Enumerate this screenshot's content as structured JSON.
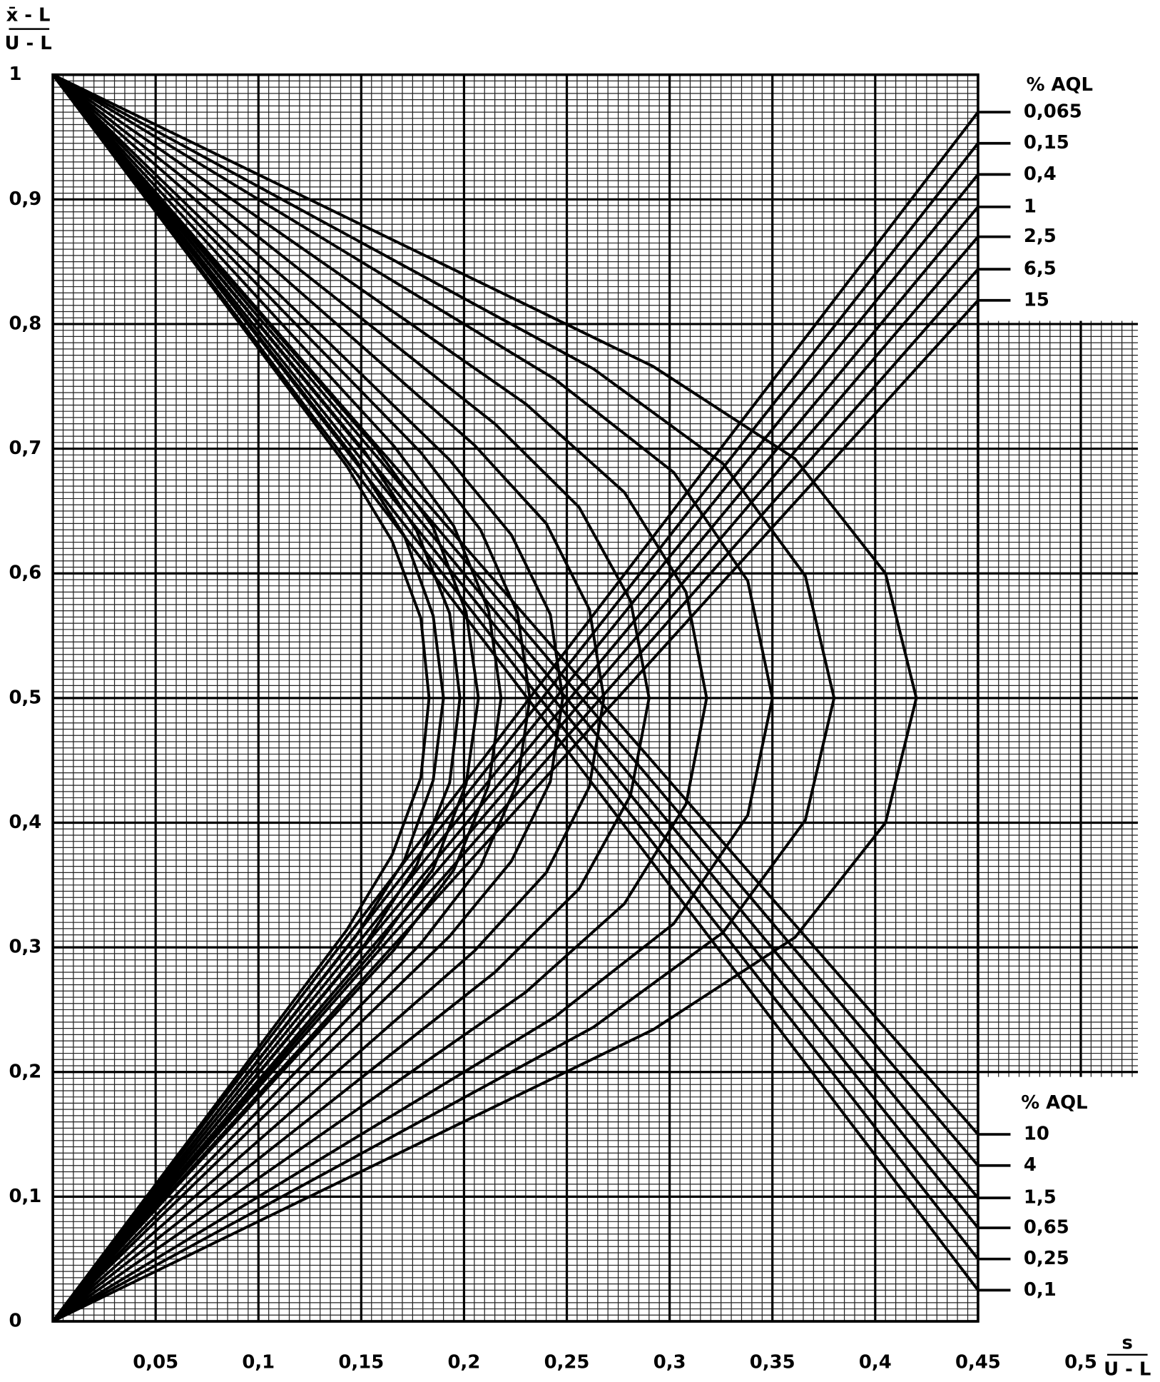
{
  "chart_data": {
    "type": "line",
    "y_label": {
      "numerator": "x̄ - L",
      "denominator": "U - L"
    },
    "x_label": {
      "numerator": "s",
      "denominator": "U - L"
    },
    "legend_title": "% AQL",
    "xlim": [
      0,
      0.45
    ],
    "ylim": [
      0,
      1
    ],
    "xticks": [
      {
        "value": 0.05,
        "label": "0,05"
      },
      {
        "value": 0.1,
        "label": "0,1"
      },
      {
        "value": 0.15,
        "label": "0,15"
      },
      {
        "value": 0.2,
        "label": "0,2"
      },
      {
        "value": 0.25,
        "label": "0,25"
      },
      {
        "value": 0.3,
        "label": "0,3"
      },
      {
        "value": 0.35,
        "label": "0,35"
      },
      {
        "value": 0.4,
        "label": "0,4"
      },
      {
        "value": 0.45,
        "label": "0,45"
      },
      {
        "value": 0.5,
        "label": "0,5"
      }
    ],
    "yticks": [
      0,
      {
        "value": 0.1,
        "label": "0,1"
      },
      {
        "value": 0.2,
        "label": "0,2"
      },
      {
        "value": 0.3,
        "label": "0,3"
      },
      {
        "value": 0.4,
        "label": "0,4"
      },
      {
        "value": 0.5,
        "label": "0,5"
      },
      {
        "value": 0.6,
        "label": "0,6"
      },
      {
        "value": 0.7,
        "label": "0,7"
      },
      {
        "value": 0.8,
        "label": "0,8"
      },
      {
        "value": 0.9,
        "label": "0,9"
      },
      1
    ],
    "x_minor_step": 0.005,
    "y_minor_step": 0.005,
    "grid": true,
    "series": [
      {
        "name": "0,065",
        "color": "#000000",
        "x": [
          0,
          0.143,
          0.165,
          0.179,
          0.183,
          0.179,
          0.165,
          0.143,
          0
        ],
        "values": [
          0,
          0.314,
          0.374,
          0.436,
          0.5,
          0.564,
          0.626,
          0.686,
          1
        ],
        "line_x": [
          0,
          0.45
        ],
        "line_y": [
          0,
          0.97
        ]
      },
      {
        "name": "0,1",
        "color": "#000000",
        "x": [
          0,
          0.147,
          0.171,
          0.185,
          0.19,
          0.185,
          0.171,
          0.147,
          0
        ],
        "values": [
          0,
          0.308,
          0.37,
          0.434,
          0.5,
          0.566,
          0.63,
          0.692,
          1
        ],
        "line_x": [
          0,
          0.45
        ],
        "line_y": [
          1,
          0.025
        ]
      },
      {
        "name": "0,15",
        "color": "#000000",
        "x": [
          0,
          0.152,
          0.177,
          0.193,
          0.198,
          0.193,
          0.177,
          0.152,
          0
        ],
        "values": [
          0,
          0.303,
          0.366,
          0.432,
          0.5,
          0.568,
          0.634,
          0.697,
          1
        ],
        "line_x": [
          0,
          0.45
        ],
        "line_y": [
          0,
          0.945
        ]
      },
      {
        "name": "0,25",
        "color": "#000000",
        "x": [
          0,
          0.157,
          0.185,
          0.201,
          0.207,
          0.201,
          0.185,
          0.157,
          0
        ],
        "values": [
          0,
          0.299,
          0.363,
          0.431,
          0.5,
          0.569,
          0.637,
          0.701,
          1
        ],
        "line_x": [
          0,
          0.45
        ],
        "line_y": [
          1,
          0.05
        ]
      },
      {
        "name": "0,4",
        "color": "#000000",
        "x": [
          0,
          0.166,
          0.195,
          0.212,
          0.218,
          0.212,
          0.195,
          0.166,
          0
        ],
        "values": [
          0,
          0.298,
          0.362,
          0.43,
          0.5,
          0.57,
          0.638,
          0.702,
          1
        ],
        "line_x": [
          0,
          0.45
        ],
        "line_y": [
          0,
          0.92
        ]
      },
      {
        "name": "0,65",
        "color": "#000000",
        "x": [
          0,
          0.179,
          0.208,
          0.226,
          0.232,
          0.226,
          0.208,
          0.179,
          0
        ],
        "values": [
          0,
          0.303,
          0.365,
          0.432,
          0.5,
          0.568,
          0.635,
          0.697,
          1
        ],
        "line_x": [
          0,
          0.45
        ],
        "line_y": [
          1,
          0.075
        ]
      },
      {
        "name": "1",
        "color": "#000000",
        "x": [
          0,
          0.193,
          0.223,
          0.242,
          0.248,
          0.242,
          0.223,
          0.193,
          0
        ],
        "values": [
          0,
          0.309,
          0.369,
          0.433,
          0.5,
          0.567,
          0.631,
          0.691,
          1
        ],
        "line_x": [
          0,
          0.45
        ],
        "line_y": [
          0,
          0.894
        ]
      },
      {
        "name": "1,5",
        "color": "#000000",
        "x": [
          0,
          0.205,
          0.24,
          0.261,
          0.268,
          0.261,
          0.24,
          0.205,
          0
        ],
        "values": [
          0,
          0.297,
          0.36,
          0.429,
          0.5,
          0.571,
          0.64,
          0.703,
          1
        ],
        "line_x": [
          0,
          0.45
        ],
        "line_y": [
          1,
          0.099
        ]
      },
      {
        "name": "2,5",
        "color": "#000000",
        "x": [
          0,
          0.215,
          0.256,
          0.281,
          0.29,
          0.281,
          0.256,
          0.215,
          0
        ],
        "values": [
          0,
          0.28,
          0.347,
          0.422,
          0.5,
          0.578,
          0.653,
          0.72,
          1
        ],
        "line_x": [
          0,
          0.45
        ],
        "line_y": [
          0,
          0.87
        ]
      },
      {
        "name": "4",
        "color": "#000000",
        "x": [
          0,
          0.23,
          0.278,
          0.308,
          0.318,
          0.308,
          0.278,
          0.23,
          0
        ],
        "values": [
          0,
          0.264,
          0.335,
          0.415,
          0.5,
          0.585,
          0.665,
          0.736,
          1
        ],
        "line_x": [
          0,
          0.45
        ],
        "line_y": [
          1,
          0.125
        ]
      },
      {
        "name": "6,5",
        "color": "#000000",
        "x": [
          0,
          0.244,
          0.302,
          0.338,
          0.35,
          0.338,
          0.302,
          0.244,
          0
        ],
        "values": [
          0,
          0.244,
          0.319,
          0.406,
          0.5,
          0.594,
          0.681,
          0.756,
          1
        ],
        "line_x": [
          0,
          0.45
        ],
        "line_y": [
          0,
          0.844
        ]
      },
      {
        "name": "10",
        "color": "#000000",
        "x": [
          0,
          0.263,
          0.326,
          0.366,
          0.38,
          0.366,
          0.326,
          0.263,
          0
        ],
        "values": [
          0,
          0.236,
          0.312,
          0.402,
          0.5,
          0.598,
          0.688,
          0.764,
          1
        ],
        "line_x": [
          0,
          0.45
        ],
        "line_y": [
          1,
          0.15
        ]
      },
      {
        "name": "15",
        "color": "#000000",
        "x": [
          0,
          0.292,
          0.361,
          0.405,
          0.42,
          0.405,
          0.361,
          0.292,
          0
        ],
        "values": [
          0,
          0.234,
          0.308,
          0.4,
          0.5,
          0.6,
          0.692,
          0.766,
          1
        ],
        "line_x": [
          0,
          0.45
        ],
        "line_y": [
          0,
          0.819
        ]
      }
    ]
  }
}
